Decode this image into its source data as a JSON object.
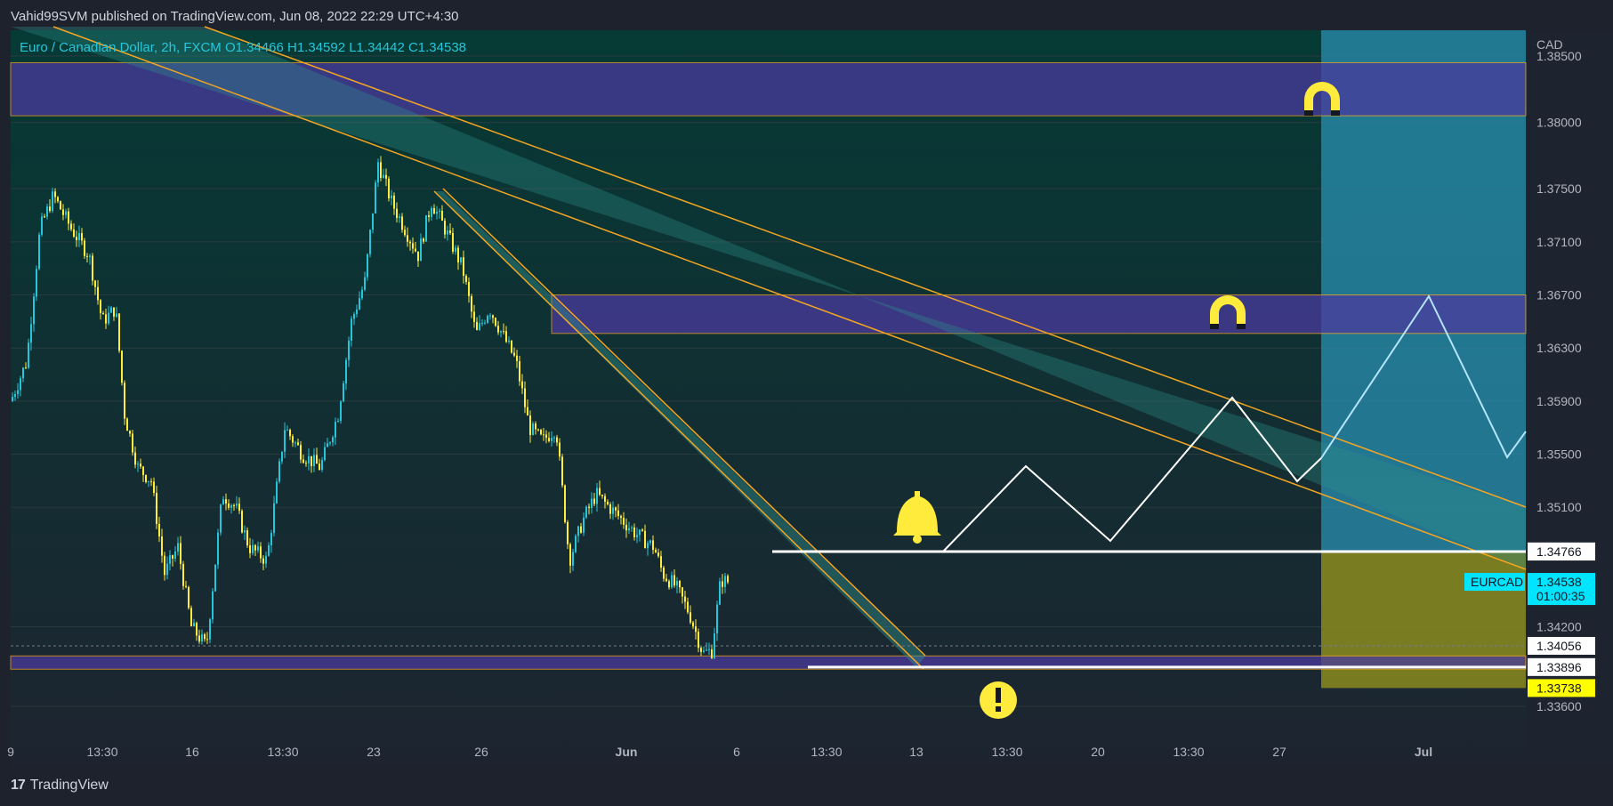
{
  "header": {
    "published": "Vahid99SVM published on TradingView.com, Jun 08, 2022 22:29 UTC+4:30"
  },
  "footer": {
    "logo_text": "TradingView",
    "logo_glyph": "17"
  },
  "chart_data": {
    "type": "candlestick",
    "symbol_line": "Euro / Canadian Dollar, 2h, FXCM  O1.34466  H1.34592  L1.34442  C1.34538",
    "currency": "CAD",
    "ohlc": {
      "open": 1.34466,
      "high": 1.34592,
      "low": 1.34442,
      "close": 1.34538
    },
    "y_ticks": [
      "1.38500",
      "1.38000",
      "1.37500",
      "1.37100",
      "1.36700",
      "1.36300",
      "1.35900",
      "1.35500",
      "1.35100",
      "1.34200",
      "1.33600"
    ],
    "ylim": [
      1.3345,
      1.3862
    ],
    "x_ticks": [
      "9",
      "13:30",
      "16",
      "13:30",
      "23",
      "26",
      "Jun",
      "6",
      "13:30",
      "13",
      "13:30",
      "20",
      "13:30",
      "27",
      "Jul"
    ],
    "price_labels": [
      {
        "text": "1.34770",
        "value": 1.3477,
        "bg": "#787b86",
        "fg": "#ffffff"
      },
      {
        "text": "1.34766",
        "value": 1.34766,
        "bg": "#ffffff",
        "fg": "#131722"
      },
      {
        "text": "1.34538",
        "value": 1.34538,
        "bg": "#00e5ff",
        "fg": "#131722",
        "sub": "01:00:35",
        "tag": "EURCAD"
      },
      {
        "text": "1.34056",
        "value": 1.34056,
        "bg": "#ffffff",
        "fg": "#131722"
      },
      {
        "text": "1.33896",
        "value": 1.33896,
        "bg": "#ffffff",
        "fg": "#131722"
      },
      {
        "text": "1.33738",
        "value": 1.33738,
        "bg": "#ffff00",
        "fg": "#131722"
      }
    ],
    "zones": [
      {
        "name": "upper supply zone",
        "from": 1.3805,
        "to": 1.3845
      },
      {
        "name": "middle supply zone",
        "from": 1.3641,
        "to": 1.367
      },
      {
        "name": "lower demand zone",
        "from": 1.3388,
        "to": 1.3398
      }
    ],
    "colors": {
      "up_candle": "#26c6da",
      "down_candle": "#ffeb3b",
      "zone_fill": "#4a3a9e",
      "zone_border": "#f5a623",
      "channel": "#f5a623",
      "projection": "#ffffff",
      "projection_future": "#b3e5fc",
      "target_box": "#2a8fb0",
      "stop_box": "#8b8b1e",
      "icons": "#ffeb3b"
    },
    "icons": [
      "magnet-icon",
      "magnet-icon",
      "bell-icon",
      "warning-icon"
    ]
  }
}
